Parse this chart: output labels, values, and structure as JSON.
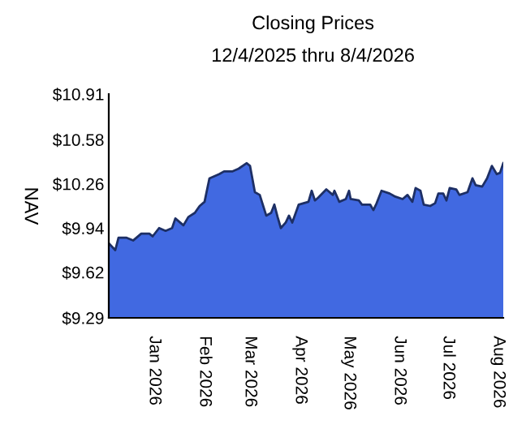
{
  "chart_data": {
    "type": "area",
    "title": "Closing Prices",
    "subtitle": "12/4/2025 thru 8/4/2026",
    "ylabel": "NAV",
    "x": [
      "2025-12-04",
      "2025-12-08",
      "2025-12-10",
      "2025-12-15",
      "2025-12-19",
      "2025-12-24",
      "2025-12-29",
      "2025-12-31",
      "2026-01-04",
      "2026-01-08",
      "2026-01-12",
      "2026-01-14",
      "2026-01-19",
      "2026-01-22",
      "2026-01-26",
      "2026-01-29",
      "2026-02-01",
      "2026-02-04",
      "2026-02-10",
      "2026-02-13",
      "2026-02-18",
      "2026-02-22",
      "2026-02-27",
      "2026-03-01",
      "2026-03-04",
      "2026-03-07",
      "2026-03-11",
      "2026-03-14",
      "2026-03-16",
      "2026-03-18",
      "2026-03-20",
      "2026-03-23",
      "2026-03-25",
      "2026-03-27",
      "2026-03-31",
      "2026-04-06",
      "2026-04-08",
      "2026-04-10",
      "2026-04-12",
      "2026-04-17",
      "2026-04-21",
      "2026-04-22",
      "2026-04-25",
      "2026-04-29",
      "2026-05-01",
      "2026-05-02",
      "2026-05-07",
      "2026-05-09",
      "2026-05-14",
      "2026-05-16",
      "2026-05-18",
      "2026-05-21",
      "2026-05-26",
      "2026-05-29",
      "2026-06-03",
      "2026-06-06",
      "2026-06-09",
      "2026-06-11",
      "2026-06-14",
      "2026-06-16",
      "2026-06-20",
      "2026-06-23",
      "2026-06-25",
      "2026-06-28",
      "2026-06-30",
      "2026-07-02",
      "2026-07-06",
      "2026-07-08",
      "2026-07-13",
      "2026-07-16",
      "2026-07-18",
      "2026-07-22",
      "2026-07-25",
      "2026-07-28",
      "2026-07-31",
      "2026-08-02",
      "2026-08-04"
    ],
    "series": [
      {
        "color": "#4169e1",
        "values": [
          9.83,
          9.78,
          9.87,
          9.87,
          9.85,
          9.9,
          9.9,
          9.88,
          9.94,
          9.92,
          9.94,
          10.01,
          9.96,
          10.02,
          10.05,
          10.1,
          10.13,
          10.3,
          10.33,
          10.35,
          10.35,
          10.37,
          10.41,
          10.39,
          10.2,
          10.18,
          10.03,
          10.05,
          10.11,
          10.02,
          9.94,
          9.98,
          10.03,
          9.98,
          10.11,
          10.13,
          10.21,
          10.14,
          10.16,
          10.22,
          10.18,
          10.21,
          10.13,
          10.15,
          10.21,
          10.15,
          10.14,
          10.11,
          10.11,
          10.07,
          10.12,
          10.21,
          10.19,
          10.17,
          10.15,
          10.18,
          10.13,
          10.23,
          10.21,
          10.11,
          10.1,
          10.12,
          10.19,
          10.19,
          10.14,
          10.23,
          10.22,
          10.18,
          10.2,
          10.3,
          10.25,
          10.24,
          10.3,
          10.39,
          10.33,
          10.34,
          10.41
        ]
      }
    ],
    "xlim": [
      "2025-12-04",
      "2026-08-04"
    ],
    "xticks": [
      {
        "value": "2026-01-01",
        "label": "Jan 2026"
      },
      {
        "value": "2026-02-01",
        "label": "Feb 2026"
      },
      {
        "value": "2026-03-01",
        "label": "Mar 2026"
      },
      {
        "value": "2026-04-01",
        "label": "Apr 2026"
      },
      {
        "value": "2026-05-01",
        "label": "May 2026"
      },
      {
        "value": "2026-06-01",
        "label": "Jun 2026"
      },
      {
        "value": "2026-07-01",
        "label": "Jul 2026"
      },
      {
        "value": "2026-08-01",
        "label": "Aug 2026"
      }
    ],
    "ylim": [
      9.29,
      10.91
    ],
    "yticks": [
      {
        "value": 9.29,
        "label": "$9.29"
      },
      {
        "value": 9.62,
        "label": "$9.62"
      },
      {
        "value": 9.94,
        "label": "$9.94"
      },
      {
        "value": 10.26,
        "label": "$10.26"
      },
      {
        "value": 10.58,
        "label": "$10.58"
      },
      {
        "value": 10.91,
        "label": "$10.91"
      }
    ],
    "grid": false,
    "legend": false
  }
}
